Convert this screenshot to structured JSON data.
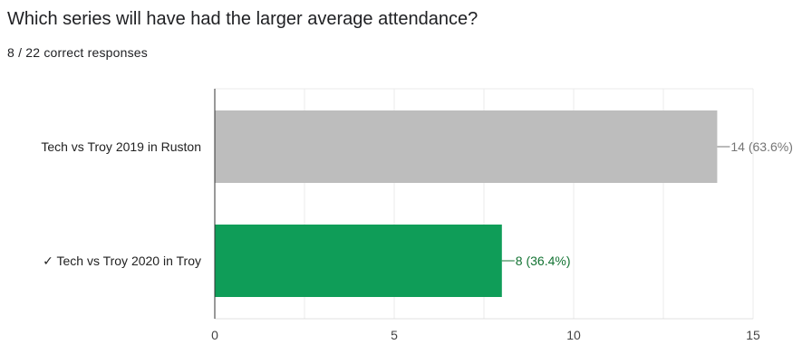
{
  "question": "Which series will have had the larger average attendance?",
  "summary": "8 / 22 correct responses",
  "chart_data": {
    "type": "bar",
    "orientation": "horizontal",
    "categories": [
      "Tech vs Troy 2019 in Ruston",
      "✓ Tech vs Troy 2020 in Troy"
    ],
    "values": [
      14,
      8
    ],
    "value_labels": [
      "14 (63.6%)",
      "8 (36.4%)"
    ],
    "bar_colors": [
      "#bdbdbd",
      "#0f9d58"
    ],
    "label_colors": [
      "#757575",
      "#137333"
    ],
    "xlim": [
      0,
      15
    ],
    "xticks": [
      0,
      5,
      10,
      15
    ],
    "grid": true,
    "legend": "none"
  }
}
